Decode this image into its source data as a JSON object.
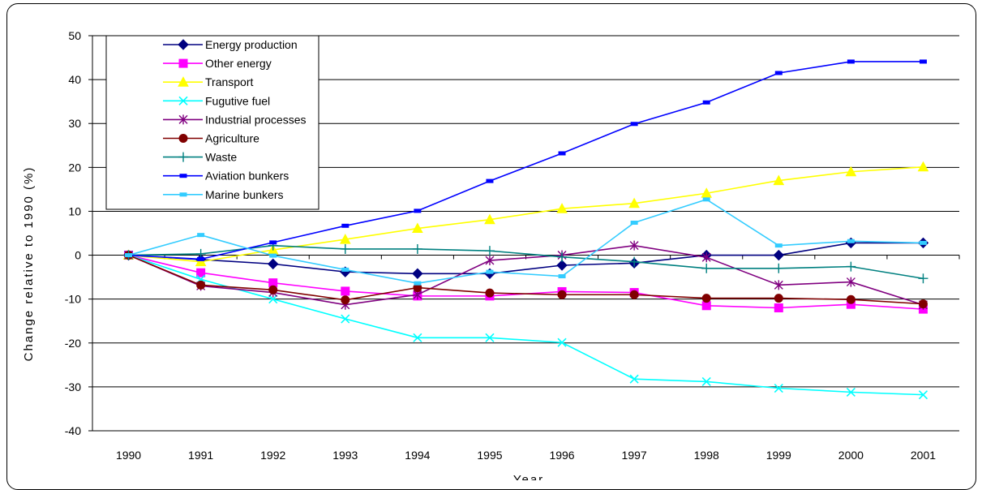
{
  "chart_data": {
    "type": "line",
    "xlabel": "Year",
    "ylabel": "Change relative to 1990 (%)",
    "ylim": [
      -40,
      50
    ],
    "yticks": [
      50,
      40,
      30,
      20,
      10,
      0,
      -10,
      -20,
      -30,
      -40
    ],
    "grid": "horizontal",
    "legend_position": "top-left",
    "categories": [
      "1990",
      "1991",
      "1992",
      "1993",
      "1994",
      "1995",
      "1996",
      "1997",
      "1998",
      "1999",
      "2000",
      "2001"
    ],
    "series": [
      {
        "name": "Energy production",
        "color": "#000080",
        "marker": "diamond",
        "values": [
          0,
          -1,
          -2,
          -3.8,
          -4.2,
          -4.2,
          -2.3,
          -1.8,
          0,
          0,
          2.8,
          2.8
        ]
      },
      {
        "name": "Other energy",
        "color": "#ff00ff",
        "marker": "square",
        "values": [
          0,
          -4,
          -6.3,
          -8.2,
          -9.3,
          -9.3,
          -8.3,
          -8.5,
          -11.5,
          -12,
          -11.2,
          -12.3
        ]
      },
      {
        "name": "Transport",
        "color": "#ffff00",
        "marker": "triangle",
        "values": [
          0,
          -1.5,
          1.2,
          3.6,
          6.1,
          8.1,
          10.6,
          11.8,
          14.1,
          17,
          19,
          20.1
        ]
      },
      {
        "name": "Fugutive fuel",
        "color": "#00ffff",
        "marker": "x",
        "values": [
          0,
          -5.5,
          -10,
          -14.5,
          -18.8,
          -18.8,
          -19.9,
          -28.2,
          -28.8,
          -30.3,
          -31.2,
          -31.8
        ]
      },
      {
        "name": "Industrial processes",
        "color": "#800080",
        "marker": "star",
        "values": [
          0,
          -7,
          -8.5,
          -11.3,
          -9,
          -1.2,
          0,
          2.2,
          -0.5,
          -6.8,
          -6.1,
          -11.3
        ]
      },
      {
        "name": "Agriculture",
        "color": "#800000",
        "marker": "circle",
        "values": [
          0,
          -6.8,
          -7.9,
          -10.2,
          -7.4,
          -8.6,
          -9,
          -9,
          -9.8,
          -9.8,
          -10.1,
          -11.1
        ]
      },
      {
        "name": "Waste",
        "color": "#008080",
        "marker": "plus",
        "values": [
          0,
          0.3,
          2.2,
          1.4,
          1.4,
          1,
          -0.4,
          -1.5,
          -3,
          -3,
          -2.6,
          -5.3
        ]
      },
      {
        "name": "Aviation bunkers",
        "color": "#0000ff",
        "marker": "dash",
        "values": [
          0,
          -0.9,
          2.9,
          6.7,
          10.1,
          16.9,
          23.2,
          29.9,
          34.8,
          41.5,
          44.1,
          44.1
        ]
      },
      {
        "name": "Marine bunkers",
        "color": "#33ccff",
        "marker": "dash",
        "values": [
          0,
          4.6,
          -0.1,
          -3.3,
          -6.4,
          -3.8,
          -4.8,
          7.4,
          12.7,
          2.2,
          3.2,
          2.8
        ]
      }
    ]
  }
}
